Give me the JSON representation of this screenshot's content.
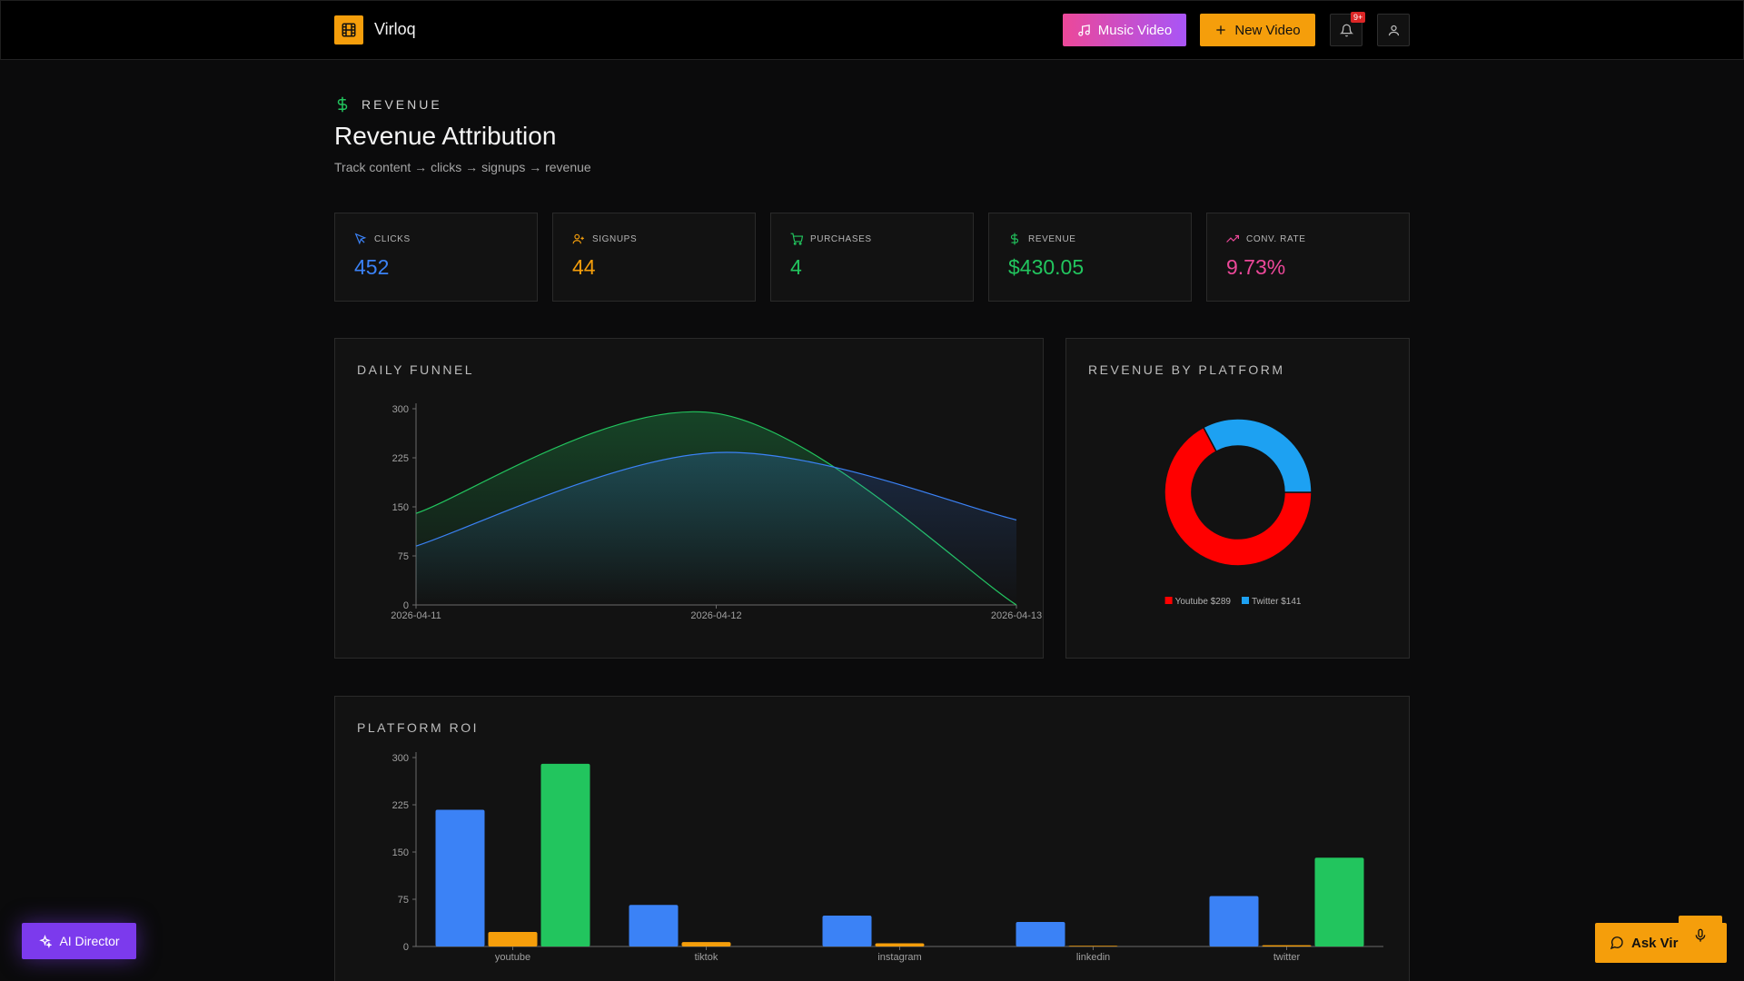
{
  "header": {
    "brand": "Virloq",
    "music_video_label": "Music Video",
    "new_video_label": "New Video",
    "notif_count": "9+"
  },
  "page": {
    "kicker": "REVENUE",
    "title": "Revenue Attribution",
    "subtitle": "Track content → clicks → signups → revenue"
  },
  "stats": [
    {
      "label": "CLICKS",
      "value": "452",
      "color": "#3b82f6",
      "icon": "cursor-icon"
    },
    {
      "label": "SIGNUPS",
      "value": "44",
      "color": "#f59e0b",
      "icon": "user-plus-icon"
    },
    {
      "label": "PURCHASES",
      "value": "4",
      "color": "#22c55e",
      "icon": "cart-icon"
    },
    {
      "label": "REVENUE",
      "value": "$430.05",
      "color": "#22c55e",
      "icon": "dollar-icon"
    },
    {
      "label": "CONV. RATE",
      "value": "9.73%",
      "color": "#ec4899",
      "icon": "trending-up-icon"
    }
  ],
  "panels": {
    "funnel_title": "DAILY FUNNEL",
    "platform_title": "REVENUE BY PLATFORM",
    "roi_title": "PLATFORM ROI"
  },
  "floating": {
    "ai_director_label": "AI Director",
    "ask_label": "Ask Virl"
  },
  "colors": {
    "accent": "#f59e0b",
    "blue": "#3b82f6",
    "green": "#22c55e",
    "red": "#ff0000",
    "twitter": "#1da1f2",
    "purple": "#7c3aed"
  },
  "chart_data": [
    {
      "type": "area",
      "x": [
        "2026-04-11",
        "2026-04-12",
        "2026-04-13"
      ],
      "y_ticks": [
        0,
        75,
        150,
        225,
        300
      ],
      "ylim": [
        0,
        300
      ],
      "grid": false,
      "series": [
        {
          "values": [
            140,
            293,
            0
          ],
          "color": "#22c55e"
        },
        {
          "values": [
            90,
            233,
            130
          ],
          "color": "#3b82f6"
        }
      ]
    },
    {
      "type": "pie",
      "donut": true,
      "legend_position": "bottom",
      "slices": [
        {
          "label": "Youtube $289",
          "value": 289,
          "color": "#ff0000"
        },
        {
          "label": "Twitter $141",
          "value": 141,
          "color": "#1da1f2"
        }
      ]
    },
    {
      "type": "bar",
      "categories": [
        "youtube",
        "tiktok",
        "instagram",
        "linkedin",
        "twitter"
      ],
      "y_ticks": [
        0,
        75,
        150,
        225,
        300
      ],
      "ylim": [
        0,
        300
      ],
      "series": [
        {
          "values": [
            217,
            66,
            49,
            39,
            80
          ],
          "color": "#3b82f6"
        },
        {
          "values": [
            23,
            7,
            5,
            1,
            2
          ],
          "color": "#f59e0b"
        },
        {
          "values": [
            290,
            0,
            0,
            0,
            141
          ],
          "color": "#22c55e"
        }
      ]
    }
  ]
}
